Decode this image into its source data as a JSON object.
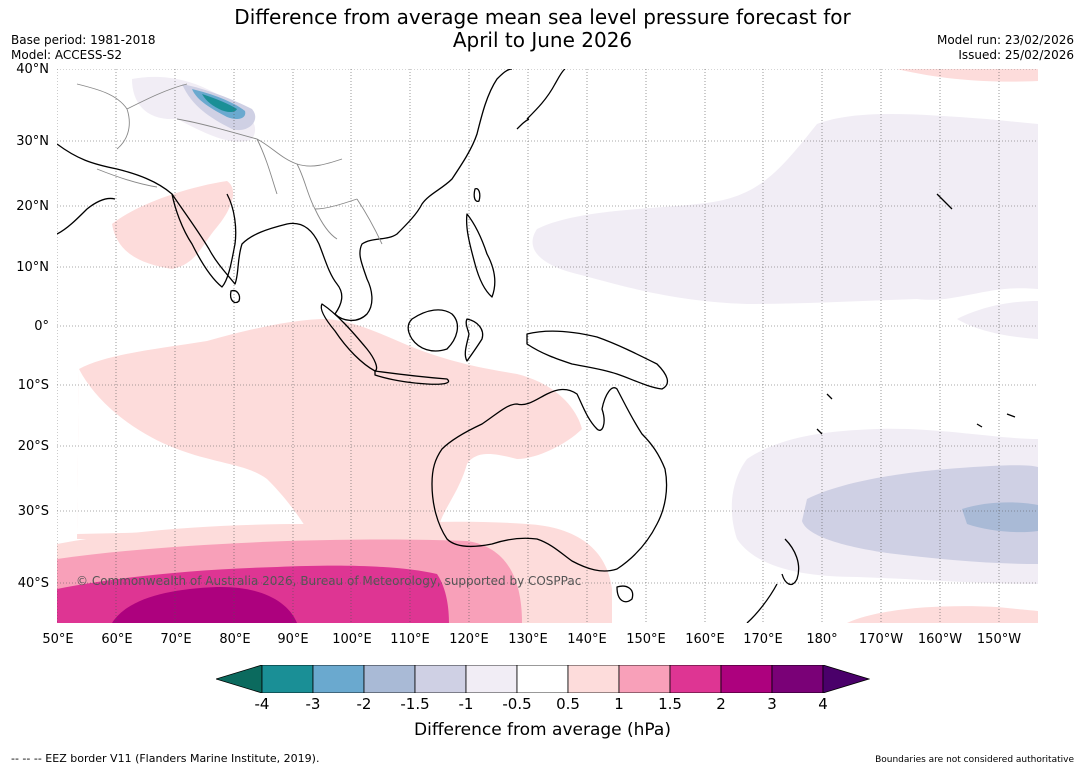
{
  "title_line1": "Difference from average mean sea level pressure forecast for",
  "title_line2": "April to June 2026",
  "base_period": "Base period: 1981-2018",
  "model": "Model: ACCESS-S2",
  "model_run": "Model run: 23/02/2026",
  "issued": "Issued: 25/02/2026",
  "copyright": "© Commonwealth of Australia 2026, Bureau of Meteorology, supported by COSPPac",
  "lat_ticks": [
    "40°N",
    "30°N",
    "20°N",
    "10°N",
    "0°",
    "10°S",
    "20°S",
    "30°S",
    "40°S"
  ],
  "lon_ticks": [
    "50°E",
    "60°E",
    "70°E",
    "80°E",
    "90°E",
    "100°E",
    "110°E",
    "120°E",
    "130°E",
    "140°E",
    "150°E",
    "160°E",
    "170°E",
    "180°",
    "170°W",
    "160°W",
    "150°W"
  ],
  "colorbar": {
    "title": "Difference from average (hPa)",
    "labels": [
      "-4",
      "-3",
      "-2",
      "-1.5",
      "-1",
      "-0.5",
      "0.5",
      "1",
      "1.5",
      "2",
      "3",
      "4"
    ],
    "colors": [
      "#1a8f96",
      "#6aa9cf",
      "#a9bad6",
      "#cfd0e4",
      "#f1edf5",
      "#ffffff",
      "#fddcdb",
      "#f8a0b9",
      "#de3593",
      "#ad017e",
      "#7a0177"
    ],
    "under_color": "#0b6a5e",
    "over_color": "#4a006a"
  },
  "footer_left": "--  --  -- EEZ border V11 (Flanders Marine Institute, 2019).",
  "footer_right": "Boundaries are not considered authoritative"
}
